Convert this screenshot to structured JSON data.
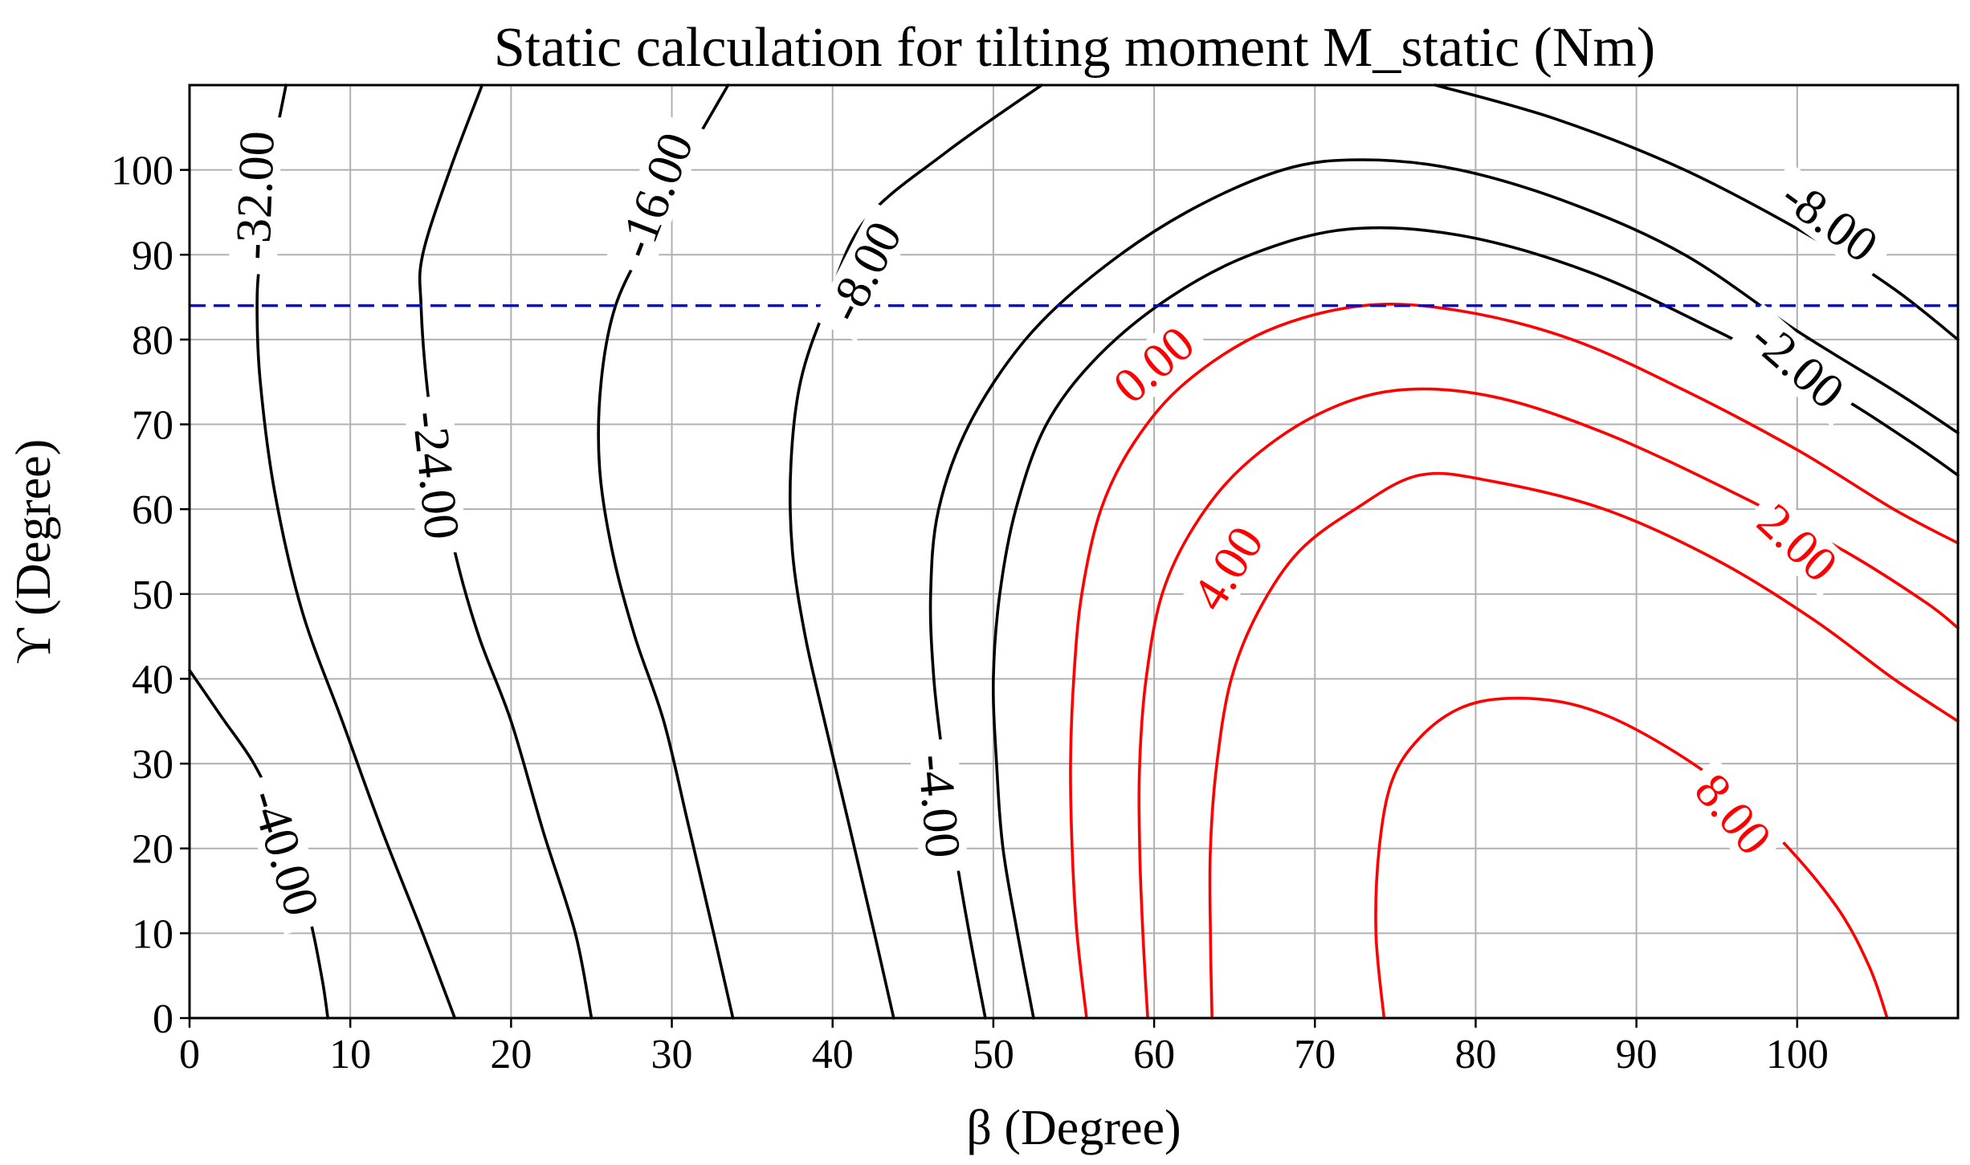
{
  "chart_data": {
    "type": "contour",
    "title": "Static calculation for tilting moment M_static (Nm)",
    "xlabel": "β (Degree)",
    "ylabel": "ϒ (Degree)",
    "xlim": [
      0,
      110
    ],
    "ylim": [
      0,
      110
    ],
    "xticks": [
      "0",
      "10",
      "20",
      "30",
      "40",
      "50",
      "60",
      "70",
      "80",
      "90",
      "100"
    ],
    "yticks": [
      "0",
      "10",
      "20",
      "30",
      "40",
      "50",
      "60",
      "70",
      "80",
      "90",
      "100"
    ],
    "grid": true,
    "reference_line": {
      "orientation": "horizontal",
      "y": 84,
      "style": "dashed",
      "color": "#0000ee"
    },
    "colors": {
      "negative": "#000000",
      "positive": "#ff0000"
    },
    "contours": [
      {
        "level": -40,
        "label": "-40.00",
        "color": "#000000",
        "points": [
          [
            0,
            41
          ],
          [
            2,
            35.5
          ],
          [
            4,
            30
          ],
          [
            5.5,
            24
          ],
          [
            6.8,
            17
          ],
          [
            7.7,
            10
          ],
          [
            8.3,
            4
          ],
          [
            8.6,
            0
          ]
        ]
      },
      {
        "level": -32,
        "label": "-32.00",
        "color": "#000000",
        "points": [
          [
            6,
            110
          ],
          [
            5,
            100
          ],
          [
            4.4,
            90
          ],
          [
            4.2,
            84
          ],
          [
            4.4,
            75
          ],
          [
            5.3,
            62
          ],
          [
            7,
            48
          ],
          [
            9.5,
            35
          ],
          [
            12,
            22
          ],
          [
            14.5,
            10
          ],
          [
            16.5,
            0
          ]
        ]
      },
      {
        "level": -24,
        "label": "-24.00",
        "color": "#000000",
        "points": [
          [
            18.2,
            110
          ],
          [
            16.2,
            100
          ],
          [
            14.5,
            90
          ],
          [
            14.4,
            84
          ],
          [
            14.8,
            74
          ],
          [
            15.5,
            65
          ],
          [
            16.5,
            55
          ],
          [
            18,
            45
          ],
          [
            20,
            35
          ],
          [
            22,
            22
          ],
          [
            24,
            10
          ],
          [
            25,
            0
          ]
        ]
      },
      {
        "level": -16,
        "label": "-16.00",
        "color": "#000000",
        "points": [
          [
            33.5,
            110
          ],
          [
            30.5,
            100
          ],
          [
            28.5,
            92
          ],
          [
            26.5,
            84
          ],
          [
            25.6,
            75
          ],
          [
            25.5,
            65
          ],
          [
            26.3,
            55
          ],
          [
            27.7,
            45
          ],
          [
            29.5,
            35
          ],
          [
            31,
            23
          ],
          [
            32.6,
            10
          ],
          [
            33.8,
            0
          ]
        ]
      },
      {
        "level": -8,
        "label": "-8.00",
        "color": "#000000",
        "points": [
          [
            53,
            110
          ],
          [
            47,
            102
          ],
          [
            42,
            94
          ],
          [
            39.6,
            84
          ],
          [
            38,
            75
          ],
          [
            37.4,
            65
          ],
          [
            37.5,
            55
          ],
          [
            38.3,
            45
          ],
          [
            39.5,
            35
          ],
          [
            41,
            23
          ],
          [
            42.6,
            10
          ],
          [
            43.8,
            0
          ]
        ]
      },
      {
        "level": -8,
        "label": "-8.00",
        "color": "#000000",
        "points": [
          [
            77.5,
            110
          ],
          [
            85,
            106
          ],
          [
            93,
            100
          ],
          [
            101,
            92
          ],
          [
            106,
            86
          ],
          [
            110,
            80
          ]
        ]
      },
      {
        "level": -4,
        "label": "-4.00",
        "color": "#000000",
        "points": [
          [
            49.5,
            0
          ],
          [
            48.5,
            10
          ],
          [
            47.6,
            20
          ],
          [
            46.9,
            30
          ],
          [
            46.3,
            40
          ],
          [
            46.1,
            50
          ],
          [
            46.6,
            60
          ],
          [
            48.5,
            70
          ],
          [
            52,
            80
          ],
          [
            56.5,
            88
          ],
          [
            62,
            95
          ],
          [
            68,
            100
          ],
          [
            73,
            101.2
          ],
          [
            79,
            100
          ],
          [
            86,
            96
          ],
          [
            93,
            90
          ],
          [
            100,
            81
          ],
          [
            106,
            74
          ],
          [
            110,
            69
          ]
        ]
      },
      {
        "level": -2,
        "label": "-2.00",
        "color": "#000000",
        "points": [
          [
            52.5,
            0
          ],
          [
            51.5,
            10
          ],
          [
            50.6,
            20
          ],
          [
            50.2,
            30
          ],
          [
            50,
            40
          ],
          [
            50.4,
            50
          ],
          [
            51.4,
            60
          ],
          [
            53.3,
            70
          ],
          [
            56.5,
            78
          ],
          [
            61,
            85
          ],
          [
            66,
            90
          ],
          [
            72,
            93
          ],
          [
            79,
            92.3
          ],
          [
            87,
            88
          ],
          [
            95,
            81
          ],
          [
            102,
            74
          ],
          [
            107,
            68
          ],
          [
            110,
            64
          ]
        ]
      },
      {
        "level": 0,
        "label": "0.00",
        "color": "#ff0000",
        "points": [
          [
            55.8,
            0
          ],
          [
            55.2,
            10
          ],
          [
            54.9,
            20
          ],
          [
            54.8,
            30
          ],
          [
            55,
            40
          ],
          [
            55.5,
            50
          ],
          [
            56.7,
            60
          ],
          [
            58.8,
            68
          ],
          [
            62,
            75
          ],
          [
            67,
            81
          ],
          [
            73,
            84
          ],
          [
            79,
            83.4
          ],
          [
            86,
            80
          ],
          [
            93,
            74
          ],
          [
            100,
            67
          ],
          [
            106,
            60
          ],
          [
            110,
            56
          ]
        ]
      },
      {
        "level": 2,
        "label": "2.00",
        "color": "#ff0000",
        "points": [
          [
            59.6,
            0
          ],
          [
            59.3,
            10
          ],
          [
            59.1,
            20
          ],
          [
            59.1,
            30
          ],
          [
            59.5,
            40
          ],
          [
            60.5,
            50
          ],
          [
            62.5,
            58
          ],
          [
            65.5,
            65
          ],
          [
            70,
            71
          ],
          [
            75,
            74
          ],
          [
            81,
            73.3
          ],
          [
            88,
            69
          ],
          [
            96,
            62
          ],
          [
            103,
            55
          ],
          [
            108,
            49
          ],
          [
            110,
            46
          ]
        ]
      },
      {
        "level": 4,
        "label": "4.00",
        "color": "#ff0000",
        "points": [
          [
            63.6,
            0
          ],
          [
            63.5,
            10
          ],
          [
            63.5,
            20
          ],
          [
            63.9,
            30
          ],
          [
            64.8,
            40
          ],
          [
            66.5,
            48
          ],
          [
            69,
            55
          ],
          [
            72.5,
            60
          ],
          [
            76.5,
            64
          ],
          [
            81,
            63.3
          ],
          [
            88,
            60
          ],
          [
            95,
            54
          ],
          [
            101,
            47
          ],
          [
            106,
            40
          ],
          [
            110,
            35
          ]
        ]
      },
      {
        "level": 8,
        "label": "8.00",
        "color": "#ff0000",
        "points": [
          [
            74.3,
            0
          ],
          [
            73.8,
            10
          ],
          [
            74,
            20
          ],
          [
            74.8,
            28
          ],
          [
            76.5,
            33
          ],
          [
            79,
            36.5
          ],
          [
            82,
            37.7
          ],
          [
            86,
            37
          ],
          [
            90,
            34
          ],
          [
            95,
            28
          ],
          [
            99,
            21
          ],
          [
            102.5,
            13
          ],
          [
            104.5,
            6
          ],
          [
            105.6,
            0
          ]
        ]
      }
    ],
    "label_positions": [
      {
        "text": "-40.00",
        "x": 5.9,
        "y": 19.5,
        "rotation": 73,
        "color": "#000000"
      },
      {
        "text": "-32.00",
        "x": 4.1,
        "y": 97,
        "rotation": -88,
        "color": "#000000"
      },
      {
        "text": "-24.00",
        "x": 15.3,
        "y": 64,
        "rotation": 84,
        "color": "#000000"
      },
      {
        "text": "-16.00",
        "x": 29,
        "y": 97,
        "rotation": -69,
        "color": "#000000"
      },
      {
        "text": "-8.00",
        "x": 42,
        "y": 88,
        "rotation": -63,
        "color": "#000000"
      },
      {
        "text": "-8.00",
        "x": 102,
        "y": 94,
        "rotation": 36,
        "color": "#000000"
      },
      {
        "text": "-4.00",
        "x": 46.6,
        "y": 25,
        "rotation": 85,
        "color": "#000000"
      },
      {
        "text": "-2.00",
        "x": 100,
        "y": 77,
        "rotation": 41,
        "color": "#000000"
      },
      {
        "text": "0.00",
        "x": 60,
        "y": 77,
        "rotation": -41,
        "color": "#ff0000"
      },
      {
        "text": "2.00",
        "x": 100,
        "y": 56,
        "rotation": 43,
        "color": "#ff0000"
      },
      {
        "text": "4.00",
        "x": 64.6,
        "y": 53,
        "rotation": -58,
        "color": "#ff0000"
      },
      {
        "text": "8.00",
        "x": 96,
        "y": 24,
        "rotation": 50,
        "color": "#ff0000"
      }
    ]
  }
}
